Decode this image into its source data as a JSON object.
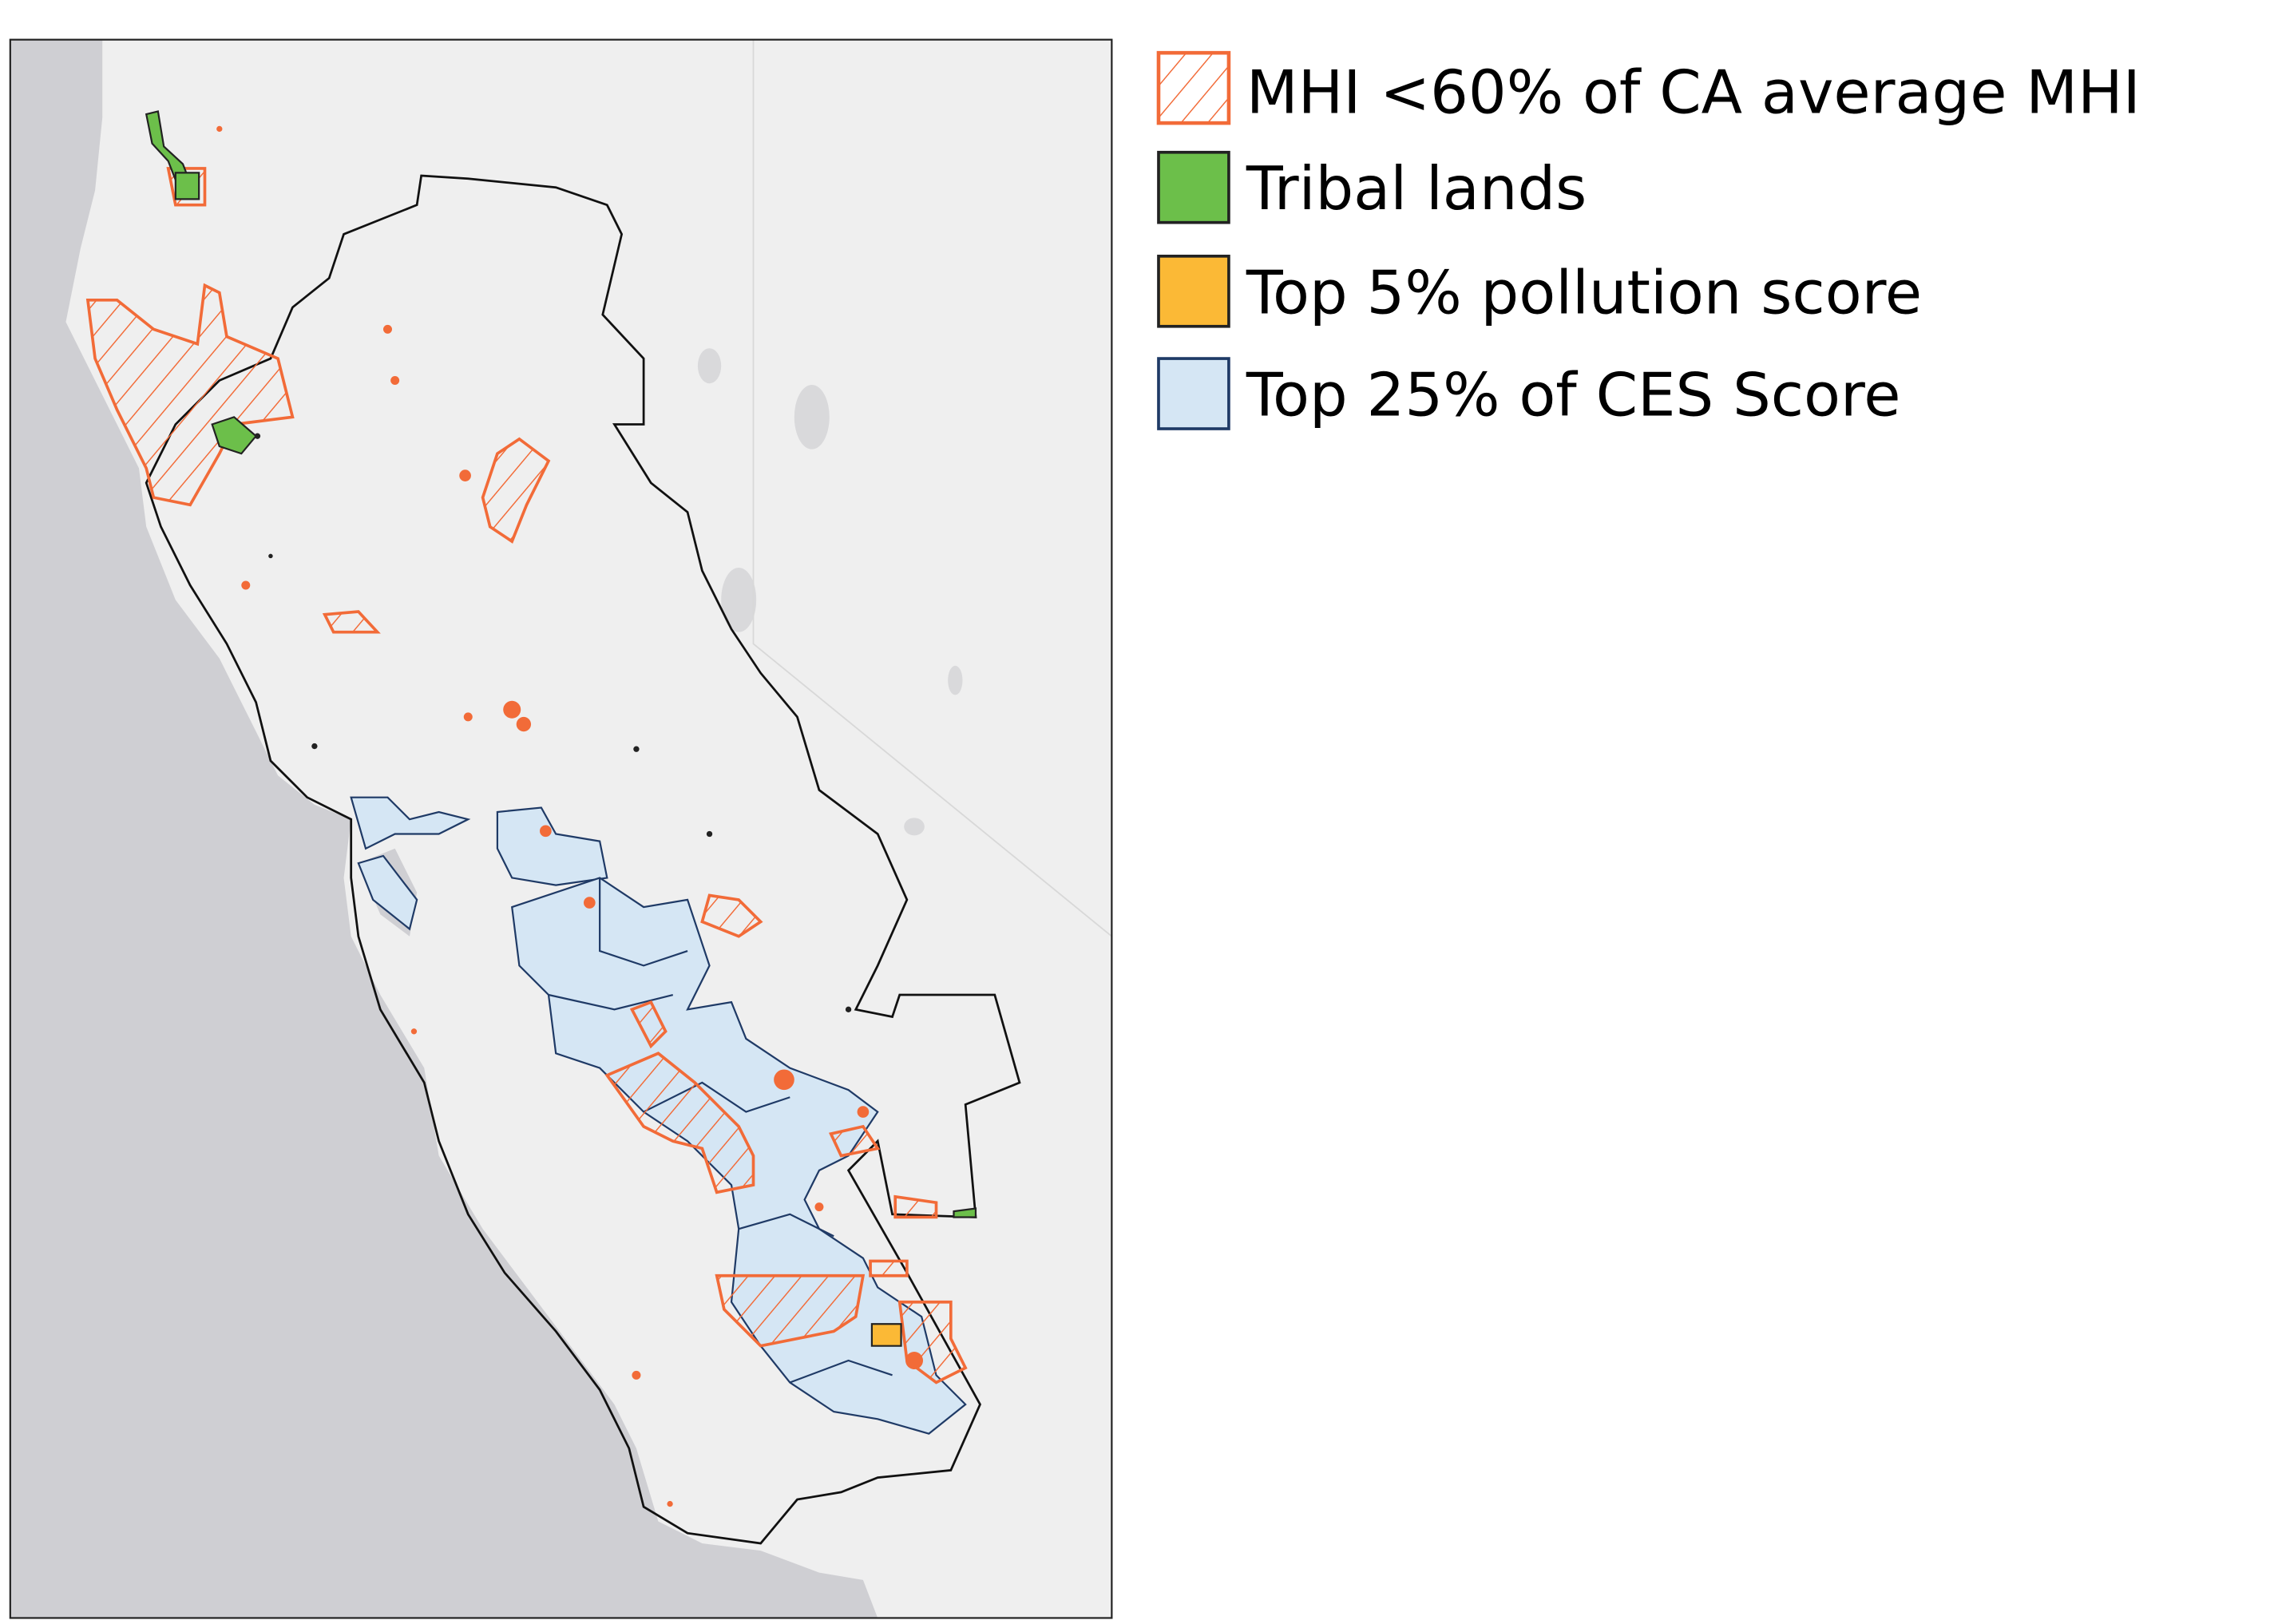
{
  "legend": {
    "items": [
      {
        "label": "MHI <60% of CA average MHI",
        "fill": "hatch",
        "stroke": "#f26b38"
      },
      {
        "label": "Tribal lands",
        "fill": "#6cbf4a",
        "stroke": "#222222"
      },
      {
        "label": "Top 5% pollution score",
        "fill": "#fbb936",
        "stroke": "#222222"
      },
      {
        "label": "Top 25% of CES Score",
        "fill": "#d5e6f4",
        "stroke": "#1f3a66"
      }
    ]
  },
  "colors": {
    "ocean": "#cfcfd3",
    "land": "#efefef",
    "study_boundary": "#111111",
    "mhi": "#f26b38",
    "tribal": "#6cbf4a",
    "pollution": "#fbb936",
    "ces": "#d5e6f4",
    "ces_stroke": "#1f3a66"
  }
}
